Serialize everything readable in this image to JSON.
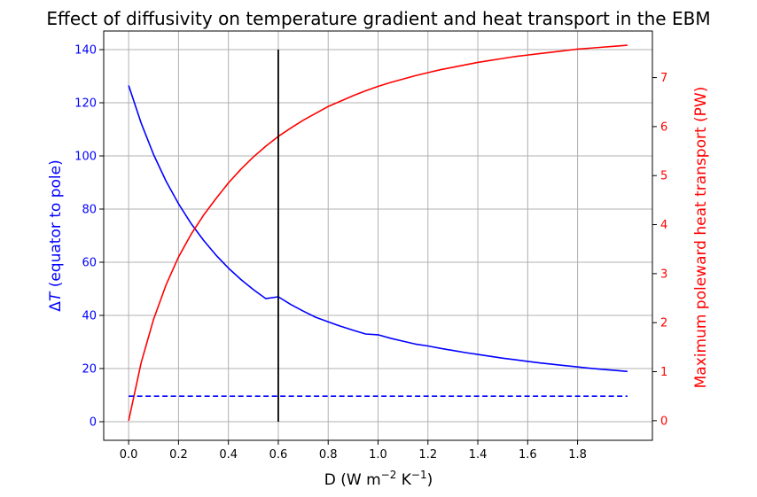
{
  "chart_data": {
    "type": "line",
    "title": "Effect of diffusivity on temperature gradient and heat transport in the EBM",
    "xlabel": {
      "prefix": "D (W m",
      "exp1": "−2",
      "mid": " K",
      "exp2": "−1",
      "suffix": ")"
    },
    "ylabel_left": {
      "delta": "Δ",
      "var": "T",
      "rest": " (equator to pole)"
    },
    "ylabel_right": "Maximum poleward heat transport (PW)",
    "xlim": [
      -0.1,
      2.1
    ],
    "ylim_left": [
      -7,
      147
    ],
    "ylim_right": [
      -0.4,
      7.95
    ],
    "grid": true,
    "x_ticks": [
      {
        "value": 0.0,
        "label": "0.0"
      },
      {
        "value": 0.2,
        "label": "0.2"
      },
      {
        "value": 0.4,
        "label": "0.4"
      },
      {
        "value": 0.6,
        "label": "0.6"
      },
      {
        "value": 0.8,
        "label": "0.8"
      },
      {
        "value": 1.0,
        "label": "1.0"
      },
      {
        "value": 1.2,
        "label": "1.2"
      },
      {
        "value": 1.4,
        "label": "1.4"
      },
      {
        "value": 1.6,
        "label": "1.6"
      },
      {
        "value": 1.8,
        "label": "1.8"
      }
    ],
    "y_left_ticks": [
      {
        "value": 0,
        "label": "0"
      },
      {
        "value": 20,
        "label": "20"
      },
      {
        "value": 40,
        "label": "40"
      },
      {
        "value": 60,
        "label": "60"
      },
      {
        "value": 80,
        "label": "80"
      },
      {
        "value": 100,
        "label": "100"
      },
      {
        "value": 120,
        "label": "120"
      },
      {
        "value": 140,
        "label": "140"
      }
    ],
    "y_right_ticks": [
      {
        "value": 0,
        "label": "0"
      },
      {
        "value": 1,
        "label": "1"
      },
      {
        "value": 2,
        "label": "2"
      },
      {
        "value": 3,
        "label": "3"
      },
      {
        "value": 4,
        "label": "4"
      },
      {
        "value": 5,
        "label": "5"
      },
      {
        "value": 6,
        "label": "6"
      },
      {
        "value": 7,
        "label": "7"
      }
    ],
    "colors": {
      "left": "#0000ff",
      "right": "#ff0000",
      "marker": "#000000",
      "grid": "#b0b0b0"
    },
    "series": [
      {
        "name": "Delta T (equator to pole)",
        "axis": "left",
        "style": "solid",
        "x": [
          0.0,
          0.05,
          0.1,
          0.15,
          0.2,
          0.25,
          0.3,
          0.35,
          0.4,
          0.45,
          0.5,
          0.55,
          0.6,
          0.65,
          0.7,
          0.75,
          0.8,
          0.85,
          0.9,
          0.95,
          1.0,
          1.05,
          1.1,
          1.15,
          1.2,
          1.25,
          1.3,
          1.35,
          1.4,
          1.45,
          1.5,
          1.55,
          1.6,
          1.65,
          1.7,
          1.75,
          1.8,
          1.85,
          1.9,
          1.95,
          2.0
        ],
        "y": [
          126.5,
          112.4,
          100.5,
          90.5,
          82.0,
          74.6,
          68.3,
          62.7,
          57.8,
          53.5,
          49.7,
          46.3,
          47.0,
          44.1,
          41.6,
          39.3,
          37.6,
          35.9,
          34.4,
          33.0,
          32.7,
          31.4,
          30.3,
          29.2,
          28.5,
          27.6,
          26.8,
          26.0,
          25.3,
          24.6,
          23.9,
          23.3,
          22.7,
          22.1,
          21.6,
          21.1,
          20.6,
          20.1,
          19.7,
          19.3,
          18.9
        ]
      },
      {
        "name": "Maximum poleward heat transport (PW)",
        "axis": "right",
        "style": "solid",
        "x": [
          0.0,
          0.05,
          0.1,
          0.15,
          0.2,
          0.25,
          0.3,
          0.35,
          0.4,
          0.45,
          0.5,
          0.55,
          0.6,
          0.65,
          0.7,
          0.75,
          0.8,
          0.85,
          0.9,
          0.95,
          1.0,
          1.05,
          1.1,
          1.15,
          1.2,
          1.25,
          1.3,
          1.35,
          1.4,
          1.45,
          1.5,
          1.55,
          1.6,
          1.65,
          1.7,
          1.75,
          1.8,
          1.85,
          1.9,
          1.95,
          2.0
        ],
        "y": [
          0.0,
          1.18,
          2.07,
          2.77,
          3.34,
          3.8,
          4.19,
          4.53,
          4.85,
          5.13,
          5.38,
          5.6,
          5.8,
          5.97,
          6.13,
          6.27,
          6.41,
          6.52,
          6.63,
          6.73,
          6.82,
          6.9,
          6.97,
          7.04,
          7.1,
          7.16,
          7.21,
          7.26,
          7.31,
          7.35,
          7.39,
          7.43,
          7.46,
          7.49,
          7.52,
          7.55,
          7.58,
          7.6,
          7.62,
          7.64,
          7.66
        ]
      },
      {
        "name": "reference Delta T",
        "axis": "left",
        "style": "dashed",
        "x": [
          0.0,
          2.0
        ],
        "y": [
          9.6,
          9.6
        ]
      }
    ],
    "vertical_line": {
      "x": 0.6,
      "y_from": 0,
      "y_to": 140,
      "axis": "left"
    }
  }
}
